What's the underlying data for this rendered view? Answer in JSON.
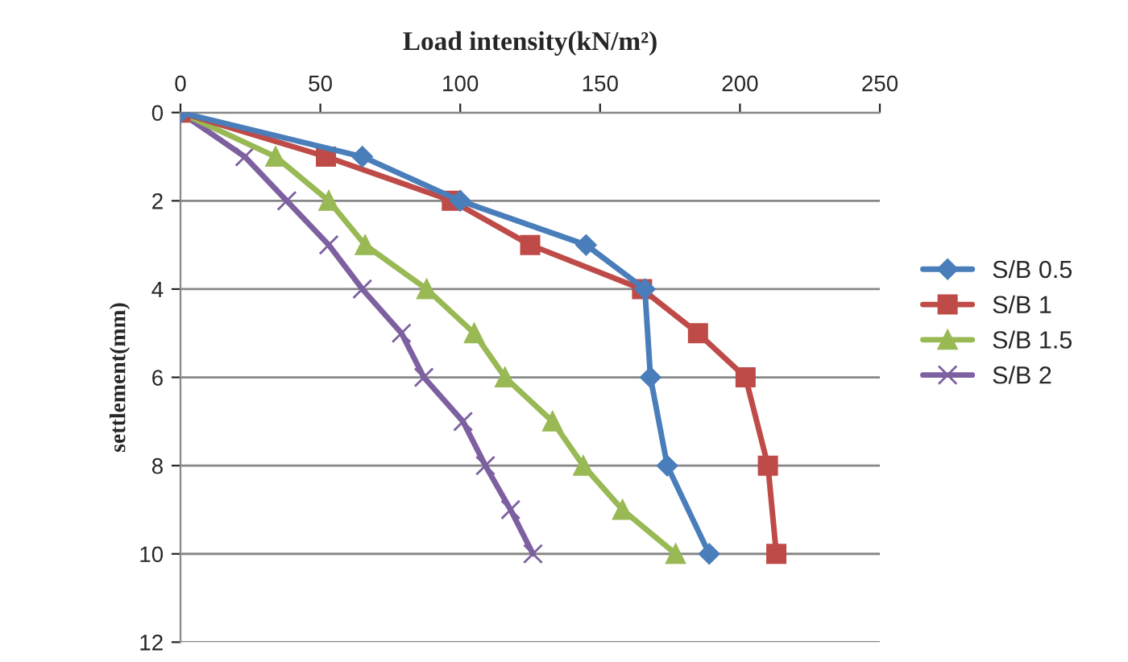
{
  "chart_data": {
    "type": "line",
    "title": "Load intensity(kN/m²)",
    "ylabel": "settlement(mm)",
    "xlim": [
      0,
      250
    ],
    "xticks": [
      0,
      50,
      100,
      150,
      200,
      250
    ],
    "ylim": [
      12,
      0
    ],
    "yticks": [
      0,
      2,
      4,
      6,
      8,
      10,
      12
    ],
    "grid": "y",
    "legend": "right",
    "series": [
      {
        "name": "S/B 0.5",
        "color": "#4a7ebb",
        "marker": "diamond",
        "x": [
          0,
          65,
          100,
          145,
          166,
          168,
          174,
          189
        ],
        "values": [
          0,
          1,
          2,
          3,
          4,
          6,
          8,
          10
        ]
      },
      {
        "name": "S/B 1",
        "color": "#be4b48",
        "marker": "square",
        "x": [
          0,
          52,
          97,
          125,
          165,
          185,
          202,
          210,
          213
        ],
        "values": [
          0,
          1,
          2,
          3,
          4,
          5,
          6,
          8,
          10
        ]
      },
      {
        "name": "S/B 1.5",
        "color": "#98b954",
        "marker": "triangle",
        "x": [
          0,
          34,
          53,
          66,
          88,
          105,
          116,
          133,
          144,
          158,
          177
        ],
        "values": [
          0,
          1,
          2,
          3,
          4,
          5,
          6,
          7,
          8,
          9,
          10
        ]
      },
      {
        "name": "S/B 2",
        "color": "#7d60a0",
        "marker": "cross",
        "x": [
          0,
          23,
          38,
          53,
          65,
          79,
          87,
          101,
          109,
          118,
          126
        ],
        "values": [
          0,
          1,
          2,
          3,
          4,
          5,
          6,
          7,
          8,
          9,
          10
        ]
      }
    ]
  }
}
